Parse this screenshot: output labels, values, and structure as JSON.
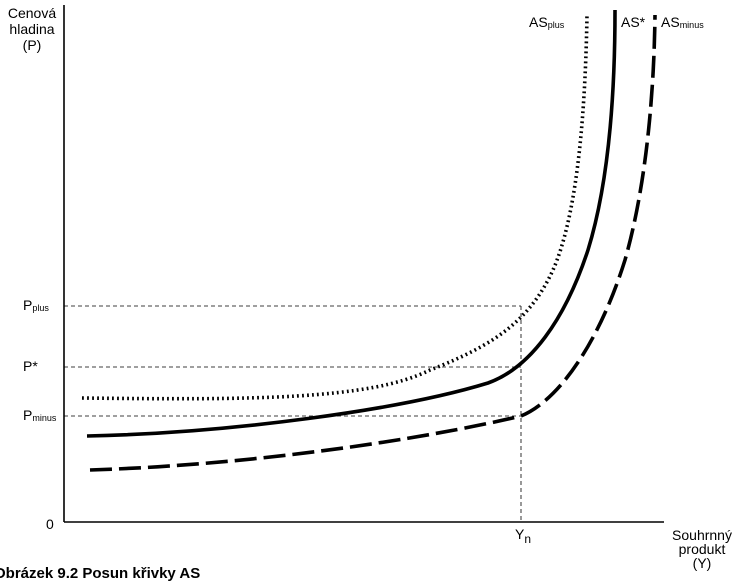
{
  "axes": {
    "y_label_lines": [
      "Cenová",
      "hladina",
      "(P)"
    ],
    "x_label_lines": [
      "Souhrnný",
      "produkt",
      "(Y)"
    ],
    "origin": "0"
  },
  "levels": {
    "p_plus": {
      "main": "P",
      "sub": "plus"
    },
    "p_star": {
      "main": "P*",
      "sub": ""
    },
    "p_minus": {
      "main": "P",
      "sub": "minus"
    },
    "yn": {
      "main": "Y",
      "sub": "n"
    }
  },
  "curves": {
    "as_plus": {
      "main": "AS",
      "sub": "plus",
      "style": "dotted"
    },
    "as_star": {
      "main": "AS*",
      "sub": "",
      "style": "solid"
    },
    "as_minus": {
      "main": "AS",
      "sub": "minus",
      "style": "dashed"
    }
  },
  "caption": "Obrázek 9.2 Posun křivky AS"
}
